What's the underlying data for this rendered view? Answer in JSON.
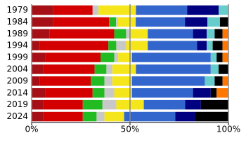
{
  "chart_data": {
    "type": "stacked-bar-horizontal",
    "categories": [
      "1979",
      "1984",
      "1989",
      "1994",
      "1999",
      "2004",
      "2009",
      "2014",
      "2019",
      "2024"
    ],
    "series": [
      {
        "color": "#a50f15",
        "values": [
          11,
          11,
          9,
          4,
          7,
          6,
          4,
          7,
          6,
          6
        ]
      },
      {
        "color": "#d40000",
        "values": [
          20,
          28.3,
          33,
          35,
          28,
          26,
          26,
          24,
          20,
          20
        ]
      },
      {
        "color": "#22bb22",
        "values": [
          0,
          3.6,
          6,
          4,
          7,
          6,
          7,
          6,
          10,
          7
        ]
      },
      {
        "color": "#c8c8c8",
        "values": [
          3,
          1,
          2,
          5,
          2,
          3,
          4,
          5,
          7,
          4
        ]
      },
      {
        "color": "#f5e51b",
        "values": [
          19,
          9,
          9,
          11,
          7,
          12,
          10,
          9,
          14,
          10
        ]
      },
      {
        "color": "#3366cc",
        "values": [
          26,
          25,
          23,
          25,
          40,
          38,
          37,
          31,
          21,
          26
        ]
      },
      {
        "color": "#000080",
        "values": [
          16,
          11.4,
          7,
          5,
          0,
          0,
          0,
          9,
          8,
          10
        ]
      },
      {
        "color": "#66cccc",
        "values": [
          5,
          6.4,
          4,
          3,
          3,
          4,
          5,
          0,
          0,
          0
        ]
      },
      {
        "color": "#000000",
        "values": [
          0,
          4.3,
          4,
          5,
          3,
          5,
          4,
          3,
          14,
          17
        ]
      },
      {
        "color": "#ff7700",
        "values": [
          0,
          0,
          3,
          3,
          3,
          0,
          3,
          6,
          0,
          0
        ]
      }
    ],
    "xlim": [
      0,
      100
    ],
    "xticks": [
      {
        "value": 0,
        "label": "0%"
      },
      {
        "value": 50,
        "label": "50%"
      },
      {
        "value": 100,
        "label": "100%"
      }
    ],
    "grid": true
  }
}
